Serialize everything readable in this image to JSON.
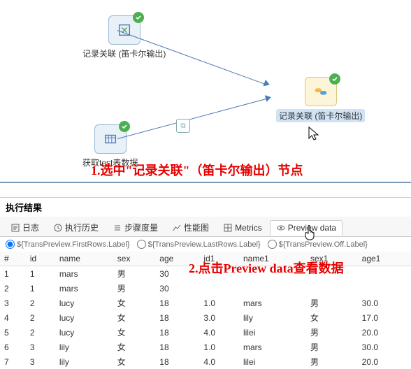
{
  "canvas": {
    "nodes": {
      "top_left": {
        "label": "记录关联 (笛卡尔输出)"
      },
      "bottom_left": {
        "label": "获取test表数据"
      },
      "right": {
        "label": "记录关联 (笛卡尔输出)"
      }
    }
  },
  "annotations": {
    "step1": "1.选中\"记录关联\"（笛卡尔输出）节点",
    "step2": "2.点击Preview data查看数据"
  },
  "panel": {
    "title": "执行结果",
    "tabs": {
      "log": "日志",
      "history": "执行历史",
      "metrics_cn": "步骤度量",
      "perf": "性能图",
      "metrics_en": "Metrics",
      "preview": "Preview data"
    },
    "radios": {
      "first": "${TransPreview.FirstRows.Label}",
      "last": "${TransPreview.LastRows.Label}",
      "off": "${TransPreview.Off.Label}"
    },
    "table": {
      "headers": [
        "#",
        "id",
        "name",
        "sex",
        "age",
        "id1",
        "name1",
        "sex1",
        "age1"
      ],
      "rows": [
        [
          "1",
          "1",
          "mars",
          "男",
          "30",
          "",
          "",
          "",
          ""
        ],
        [
          "2",
          "1",
          "mars",
          "男",
          "30",
          "",
          "",
          "",
          ""
        ],
        [
          "3",
          "2",
          "lucy",
          "女",
          "18",
          "1.0",
          "mars",
          "男",
          "30.0"
        ],
        [
          "4",
          "2",
          "lucy",
          "女",
          "18",
          "3.0",
          "lily",
          "女",
          "17.0"
        ],
        [
          "5",
          "2",
          "lucy",
          "女",
          "18",
          "4.0",
          "lilei",
          "男",
          "20.0"
        ],
        [
          "6",
          "3",
          "lily",
          "女",
          "18",
          "1.0",
          "mars",
          "男",
          "30.0"
        ],
        [
          "7",
          "3",
          "lily",
          "女",
          "18",
          "4.0",
          "lilei",
          "男",
          "20.0"
        ]
      ]
    }
  },
  "colors": {
    "arrow": "#4a7bb5",
    "badge": "#4caf50",
    "annotation": "#e60000",
    "node_bg": "#e8f0f8",
    "node_yellow": "#fdf5d8"
  }
}
